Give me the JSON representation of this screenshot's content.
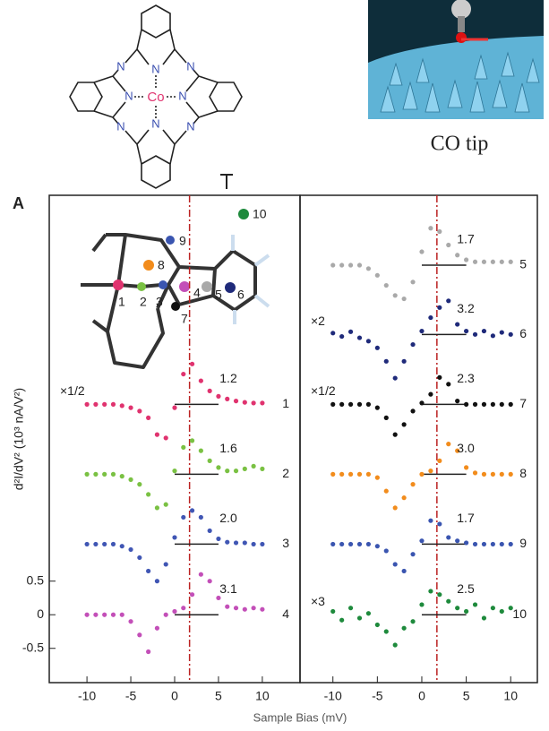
{
  "panel_label": "A",
  "co_tip": "CO tip",
  "molecule": {
    "center": "Co",
    "atoms": [
      "N",
      "N",
      "N",
      "N",
      "N",
      "N",
      "N",
      "N"
    ]
  },
  "inset_sites": [
    "1",
    "2",
    "3",
    "4",
    "5",
    "6",
    "7",
    "8",
    "9",
    "10"
  ],
  "chart_data": [
    {
      "type": "scatter",
      "ylabel": "d²I/dV² (10³ nA/V²)",
      "xlabel": "Sample Bias (mV)",
      "x": [
        -10,
        -9,
        -8,
        -7,
        -6,
        -5,
        -4,
        -3,
        -2,
        -1,
        0,
        1,
        2,
        3,
        4,
        5,
        6,
        7,
        8,
        9,
        10
      ],
      "xlim": [
        -14.3,
        14.3
      ],
      "xticks": [
        -10,
        -5,
        0,
        5,
        10
      ],
      "ylim": [
        -1.01,
        6.24
      ],
      "yticks": [
        0.5,
        0,
        -0.5
      ],
      "marker_x": 1.7,
      "series": [
        {
          "name": "1",
          "color": "#e0336f",
          "baseline": 3.13,
          "annotation": "1.2",
          "multiplier": "×1/2",
          "values": [
            3.13,
            3.13,
            3.13,
            3.13,
            3.11,
            3.08,
            3.03,
            2.93,
            2.68,
            2.63,
            3.08,
            3.58,
            3.73,
            3.48,
            3.33,
            3.25,
            3.21,
            3.18,
            3.16,
            3.15,
            3.15
          ]
        },
        {
          "name": "2",
          "color": "#7ac143",
          "baseline": 2.09,
          "annotation": "1.6",
          "values": [
            2.09,
            2.09,
            2.09,
            2.09,
            2.06,
            2.01,
            1.94,
            1.79,
            1.59,
            1.64,
            2.14,
            2.49,
            2.59,
            2.44,
            2.29,
            2.19,
            2.14,
            2.14,
            2.17,
            2.21,
            2.17
          ]
        },
        {
          "name": "3",
          "color": "#4056b4",
          "baseline": 1.05,
          "annotation": "2.0",
          "values": [
            1.05,
            1.05,
            1.05,
            1.05,
            1.02,
            0.97,
            0.85,
            0.65,
            0.5,
            0.75,
            1.15,
            1.45,
            1.55,
            1.45,
            1.25,
            1.13,
            1.08,
            1.07,
            1.07,
            1.05,
            1.05
          ]
        },
        {
          "name": "4",
          "color": "#c34fb8",
          "baseline": 0,
          "annotation": "3.1",
          "values": [
            0,
            0,
            0,
            0,
            0,
            -0.1,
            -0.3,
            -0.55,
            -0.2,
            0,
            0.05,
            0.1,
            0.3,
            0.6,
            0.5,
            0.25,
            0.12,
            0.1,
            0.08,
            0.1,
            0.08
          ]
        }
      ]
    },
    {
      "type": "scatter",
      "x": [
        -10,
        -9,
        -8,
        -7,
        -6,
        -5,
        -4,
        -3,
        -2,
        -1,
        0,
        1,
        2,
        3,
        4,
        5,
        6,
        7,
        8,
        9,
        10
      ],
      "xlim": [
        -13.7,
        13.0
      ],
      "xticks": [
        -10,
        -5,
        0,
        5,
        10
      ],
      "ylim": [
        -1.01,
        6.24
      ],
      "marker_x": 1.7,
      "series": [
        {
          "name": "5",
          "color": "#a9a9a9",
          "baseline": 5.2,
          "annotation": "1.7",
          "values": [
            5.2,
            5.2,
            5.2,
            5.2,
            5.15,
            5.05,
            4.9,
            4.75,
            4.7,
            4.95,
            5.4,
            5.75,
            5.7,
            5.5,
            5.35,
            5.28,
            5.25,
            5.25,
            5.25,
            5.25,
            5.25
          ]
        },
        {
          "name": "6",
          "color": "#1f2a7a",
          "baseline": 4.17,
          "annotation": "3.2",
          "multiplier": "×2",
          "values": [
            4.19,
            4.14,
            4.21,
            4.12,
            4.07,
            3.97,
            3.77,
            3.52,
            3.77,
            4.02,
            4.22,
            4.42,
            4.57,
            4.67,
            4.32,
            4.22,
            4.17,
            4.22,
            4.15,
            4.2,
            4.17
          ]
        },
        {
          "name": "7",
          "color": "#111111",
          "baseline": 3.13,
          "annotation": "2.3",
          "multiplier": "×1/2",
          "values": [
            3.13,
            3.13,
            3.13,
            3.13,
            3.13,
            3.08,
            2.93,
            2.68,
            2.83,
            3.03,
            3.15,
            3.28,
            3.53,
            3.43,
            3.18,
            3.13,
            3.13,
            3.13,
            3.13,
            3.13,
            3.13
          ]
        },
        {
          "name": "8",
          "color": "#f28c1c",
          "baseline": 2.09,
          "annotation": "3.0",
          "values": [
            2.09,
            2.09,
            2.09,
            2.09,
            2.09,
            2.04,
            1.84,
            1.59,
            1.74,
            1.94,
            2.09,
            2.14,
            2.29,
            2.54,
            2.44,
            2.19,
            2.11,
            2.09,
            2.09,
            2.09,
            2.09
          ]
        },
        {
          "name": "9",
          "color": "#3a55b0",
          "baseline": 1.05,
          "annotation": "1.7",
          "values": [
            1.05,
            1.05,
            1.05,
            1.05,
            1.05,
            1.02,
            0.95,
            0.75,
            0.65,
            0.9,
            1.1,
            1.4,
            1.35,
            1.15,
            1.1,
            1.07,
            1.05,
            1.05,
            1.05,
            1.05,
            1.05
          ]
        },
        {
          "name": "10",
          "color": "#1e8a3c",
          "baseline": 0,
          "annotation": "2.5",
          "multiplier": "×3",
          "values": [
            0.05,
            -0.08,
            0.1,
            -0.05,
            0.02,
            -0.15,
            -0.25,
            -0.45,
            -0.2,
            -0.1,
            0.15,
            0.35,
            0.3,
            0.2,
            0.1,
            0.05,
            0.15,
            -0.05,
            0.1,
            0.05,
            0.1
          ]
        }
      ]
    }
  ]
}
